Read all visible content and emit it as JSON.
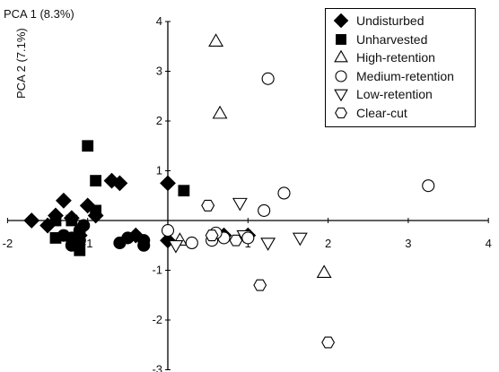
{
  "chart_data": {
    "type": "scatter",
    "xlabel": "PCA 1 (8.3%)",
    "ylabel": "PCA 2 (7.1%)",
    "xlim": [
      -2,
      4
    ],
    "ylim": [
      -3,
      4
    ],
    "xticks": [
      "-2",
      "-1",
      "1",
      "2",
      "3",
      "4"
    ],
    "yticks": [
      "-3",
      "-2",
      "-1",
      "1",
      "2",
      "3",
      "4"
    ],
    "grid": false,
    "legend_position": "top-right",
    "series": [
      {
        "name": "Undisturbed",
        "marker": "diamond",
        "filled": true,
        "points": [
          [
            -1.7,
            0.0
          ],
          [
            -1.4,
            0.1
          ],
          [
            -1.3,
            0.4
          ],
          [
            -1.2,
            0.05
          ],
          [
            -1.0,
            0.3
          ],
          [
            -0.9,
            0.1
          ],
          [
            -0.7,
            0.8
          ],
          [
            -0.6,
            0.75
          ],
          [
            0.0,
            0.75
          ],
          [
            -1.5,
            -0.1
          ],
          [
            -1.1,
            -0.3
          ],
          [
            -0.4,
            -0.3
          ],
          [
            0.0,
            -0.4
          ],
          [
            0.7,
            -0.3
          ],
          [
            1.0,
            -0.3
          ]
        ]
      },
      {
        "name": "Unharvested",
        "marker": "square",
        "filled": true,
        "points": [
          [
            -1.4,
            0.0
          ],
          [
            -1.2,
            0.0
          ],
          [
            -1.0,
            1.5
          ],
          [
            -0.9,
            0.8
          ],
          [
            -0.9,
            0.2
          ],
          [
            0.2,
            0.6
          ],
          [
            -1.4,
            -0.35
          ],
          [
            -1.1,
            -0.6
          ],
          [
            -1.2,
            -0.45
          ]
        ]
      },
      {
        "name": "Unharvested",
        "marker": "circle",
        "filled": true,
        "points": [
          [
            -1.3,
            -0.3
          ],
          [
            -1.2,
            -0.35
          ],
          [
            -1.2,
            -0.5
          ],
          [
            -1.1,
            -0.4
          ],
          [
            -1.1,
            -0.2
          ],
          [
            -1.05,
            -0.1
          ],
          [
            -0.6,
            -0.45
          ],
          [
            -0.5,
            -0.35
          ],
          [
            -0.3,
            -0.4
          ],
          [
            -0.3,
            -0.5
          ]
        ]
      },
      {
        "name": "High-retention",
        "marker": "triangle-up",
        "filled": false,
        "points": [
          [
            0.6,
            3.6
          ],
          [
            0.65,
            2.15
          ],
          [
            1.95,
            -1.05
          ],
          [
            0.15,
            -0.4
          ]
        ]
      },
      {
        "name": "Low-retention",
        "marker": "triangle-down",
        "filled": false,
        "points": [
          [
            0.9,
            0.35
          ],
          [
            1.25,
            -0.45
          ],
          [
            1.65,
            -0.35
          ],
          [
            0.1,
            -0.5
          ],
          [
            0.95,
            -0.3
          ]
        ]
      },
      {
        "name": "Medium-retention",
        "marker": "circle",
        "filled": false,
        "points": [
          [
            1.25,
            2.85
          ],
          [
            3.25,
            0.7
          ],
          [
            1.45,
            0.55
          ],
          [
            1.2,
            0.2
          ],
          [
            0.0,
            -0.2
          ],
          [
            0.3,
            -0.45
          ],
          [
            0.55,
            -0.4
          ],
          [
            0.7,
            -0.35
          ],
          [
            1.0,
            -0.35
          ],
          [
            0.6,
            -0.25
          ]
        ]
      },
      {
        "name": "Clear-cut",
        "marker": "hexagon",
        "filled": false,
        "points": [
          [
            0.5,
            0.3
          ],
          [
            1.15,
            -1.3
          ],
          [
            2.0,
            -2.45
          ],
          [
            0.55,
            -0.3
          ],
          [
            0.85,
            -0.4
          ]
        ]
      }
    ],
    "legend": [
      {
        "label": "Undisturbed",
        "marker": "diamond",
        "filled": true
      },
      {
        "label": "Unharvested",
        "marker": "square",
        "filled": true
      },
      {
        "label": "High-retention",
        "marker": "triangle-up",
        "filled": false
      },
      {
        "label": "Medium-retention",
        "marker": "circle",
        "filled": false
      },
      {
        "label": "Low-retention",
        "marker": "triangle-down",
        "filled": false
      },
      {
        "label": "Clear-cut",
        "marker": "hexagon",
        "filled": false
      }
    ]
  }
}
